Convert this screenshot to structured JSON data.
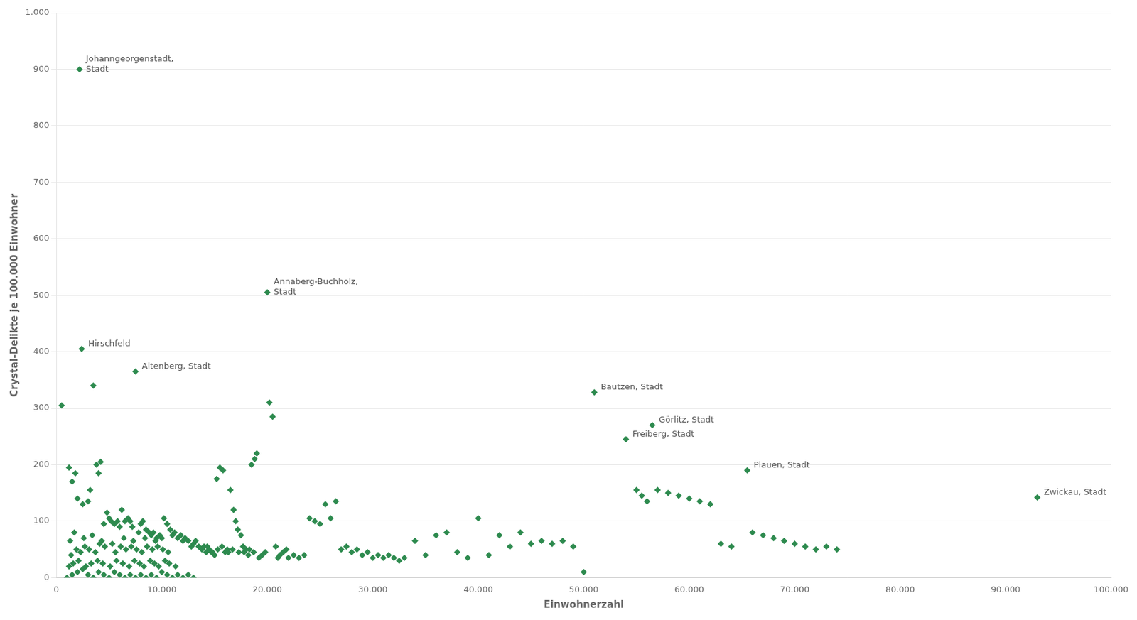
{
  "chart_data": {
    "type": "scatter",
    "xlabel": "Einwohnerzahl",
    "ylabel": "Crystal-Delikte je 100.000 Einwohner",
    "color": "#2d8a4e",
    "marker": "diamond",
    "grid": "y",
    "xlim": [
      0,
      100000
    ],
    "ylim": [
      0,
      1000
    ],
    "xticks": [
      0,
      {
        "value": 10000,
        "label": "10.000"
      },
      {
        "value": 20000,
        "label": "20.000"
      },
      {
        "value": 30000,
        "label": "30.000"
      },
      {
        "value": 40000,
        "label": "40.000"
      },
      {
        "value": 50000,
        "label": "50.000"
      },
      {
        "value": 60000,
        "label": "60.000"
      },
      {
        "value": 70000,
        "label": "70.000"
      },
      {
        "value": 80000,
        "label": "80.000"
      },
      {
        "value": 90000,
        "label": "90.000"
      },
      {
        "value": 100000,
        "label": "100.000"
      }
    ],
    "yticks": [
      0,
      100,
      200,
      300,
      400,
      500,
      600,
      700,
      800,
      900,
      {
        "value": 1000,
        "label": "1.000"
      }
    ],
    "x": [
      2200,
      2400,
      7500,
      20000,
      51000,
      54000,
      56500,
      65500,
      93000,
      500,
      1200,
      1500,
      1800,
      2000,
      2500,
      3000,
      3200,
      3500,
      3800,
      4000,
      4200,
      4500,
      4800,
      5000,
      5200,
      5500,
      5800,
      6000,
      6200,
      6500,
      6800,
      7000,
      7200,
      7800,
      8000,
      8200,
      8500,
      8800,
      9000,
      9200,
      9500,
      9800,
      10000,
      10200,
      10500,
      10800,
      11000,
      11200,
      11500,
      11800,
      12000,
      12200,
      12500,
      12800,
      13000,
      13200,
      13500,
      13800,
      14000,
      14200,
      14500,
      14800,
      15000,
      15200,
      15500,
      15800,
      16000,
      16200,
      16500,
      16800,
      17000,
      17200,
      17500,
      17800,
      18000,
      18200,
      18500,
      18800,
      19000,
      19200,
      19500,
      19800,
      20200,
      20500,
      20800,
      21000,
      21200,
      21500,
      21800,
      22000,
      22500,
      23000,
      23500,
      24000,
      24500,
      25000,
      25500,
      26000,
      26500,
      27000,
      27500,
      28000,
      28500,
      29000,
      29500,
      30000,
      30500,
      31000,
      31500,
      32000,
      32500,
      33000,
      34000,
      35000,
      36000,
      37000,
      38000,
      39000,
      40000,
      41000,
      42000,
      43000,
      44000,
      45000,
      46000,
      47000,
      48000,
      49000,
      50000,
      1000,
      1500,
      2000,
      2500,
      3000,
      3500,
      4000,
      4500,
      5000,
      5500,
      6000,
      6500,
      7000,
      7500,
      8000,
      8500,
      9000,
      9500,
      10000,
      10500,
      11000,
      11500,
      12000,
      12500,
      13000,
      1200,
      1600,
      2100,
      2800,
      3300,
      3900,
      4400,
      5100,
      5700,
      6300,
      6900,
      7400,
      7900,
      8300,
      8900,
      9300,
      9700,
      10300,
      10700,
      11300,
      1400,
      1900,
      2300,
      2700,
      3100,
      3700,
      4100,
      4600,
      5600,
      6100,
      6600,
      7100,
      7600,
      8100,
      8600,
      9100,
      9600,
      10100,
      10600,
      14300,
      14700,
      15300,
      15700,
      16300,
      16700,
      17300,
      17700,
      18300,
      18700,
      55000,
      55500,
      56000,
      57000,
      58000,
      59000,
      60000,
      61000,
      62000,
      63000,
      64000,
      66000,
      67000,
      68000,
      69000,
      70000,
      71000,
      72000,
      73000,
      74000,
      1300,
      1700,
      2600,
      3400,
      4300,
      5300,
      6400,
      7300,
      8400,
      9400
    ],
    "values": [
      900,
      405,
      365,
      505,
      328,
      245,
      270,
      190,
      142,
      305,
      195,
      170,
      185,
      140,
      130,
      135,
      155,
      340,
      200,
      185,
      205,
      95,
      115,
      105,
      100,
      95,
      100,
      90,
      120,
      100,
      105,
      100,
      90,
      80,
      95,
      100,
      85,
      80,
      75,
      80,
      70,
      75,
      70,
      105,
      95,
      85,
      75,
      80,
      70,
      75,
      65,
      70,
      65,
      55,
      60,
      65,
      55,
      50,
      55,
      45,
      50,
      45,
      40,
      175,
      195,
      190,
      45,
      50,
      155,
      120,
      100,
      85,
      75,
      45,
      50,
      40,
      200,
      210,
      220,
      35,
      40,
      45,
      310,
      285,
      55,
      35,
      40,
      45,
      50,
      35,
      40,
      35,
      40,
      105,
      100,
      95,
      130,
      105,
      135,
      50,
      55,
      45,
      50,
      40,
      45,
      35,
      40,
      35,
      40,
      35,
      30,
      35,
      65,
      40,
      75,
      80,
      45,
      35,
      105,
      40,
      75,
      55,
      80,
      60,
      65,
      60,
      65,
      55,
      10,
      0,
      5,
      10,
      15,
      5,
      0,
      10,
      5,
      0,
      10,
      5,
      0,
      5,
      0,
      5,
      0,
      5,
      0,
      10,
      5,
      0,
      5,
      0,
      5,
      0,
      20,
      25,
      30,
      20,
      25,
      30,
      25,
      20,
      30,
      25,
      20,
      30,
      25,
      20,
      30,
      25,
      20,
      30,
      25,
      20,
      40,
      50,
      45,
      55,
      50,
      45,
      60,
      55,
      45,
      55,
      50,
      55,
      50,
      45,
      55,
      50,
      55,
      50,
      45,
      55,
      45,
      50,
      55,
      45,
      50,
      45,
      55,
      50,
      45,
      155,
      145,
      135,
      155,
      150,
      145,
      140,
      135,
      130,
      60,
      55,
      80,
      75,
      70,
      65,
      60,
      55,
      50,
      55,
      50,
      65,
      80,
      70,
      75,
      65,
      60,
      70,
      65,
      70,
      65
    ],
    "annotations": [
      {
        "text": "Johanngeorgenstadt,\nStadt",
        "x": 2200,
        "y": 900
      },
      {
        "text": "Hirschfeld",
        "x": 2400,
        "y": 405
      },
      {
        "text": "Altenberg, Stadt",
        "x": 7500,
        "y": 365
      },
      {
        "text": "Annaberg-Buchholz,\nStadt",
        "x": 20000,
        "y": 505
      },
      {
        "text": "Bautzen, Stadt",
        "x": 51000,
        "y": 328
      },
      {
        "text": "Freiberg, Stadt",
        "x": 54000,
        "y": 245
      },
      {
        "text": "Görlitz, Stadt",
        "x": 56500,
        "y": 270
      },
      {
        "text": "Plauen, Stadt",
        "x": 65500,
        "y": 190
      },
      {
        "text": "Zwickau, Stadt",
        "x": 93000,
        "y": 142
      }
    ]
  }
}
